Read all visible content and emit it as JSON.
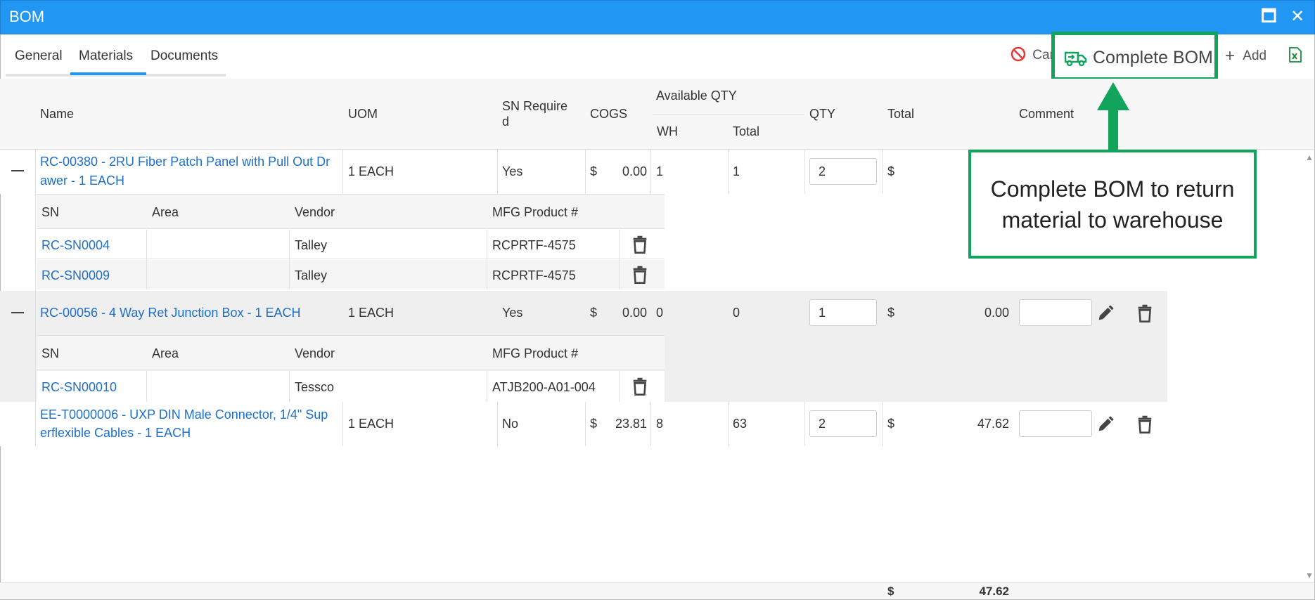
{
  "window": {
    "title": "BOM",
    "maximize_glyph": "🗖",
    "close_glyph": "✕"
  },
  "tabs": [
    {
      "label": "General"
    },
    {
      "label": "Materials"
    },
    {
      "label": "Documents"
    }
  ],
  "toolbar": {
    "cancel_label": "Can",
    "complete_label": "Complete BOM",
    "add_label": "Add",
    "add_glyph": "+"
  },
  "columns": {
    "name": "Name",
    "uom": "UOM",
    "sn_required_line1": "SN Require",
    "sn_required_line2": "d",
    "cogs": "COGS",
    "available_qty": "Available QTY",
    "wh": "WH",
    "avail_total": "Total",
    "qty": "QTY",
    "total": "Total",
    "comment": "Comment"
  },
  "sub_columns": {
    "sn": "SN",
    "area": "Area",
    "vendor": "Vendor",
    "mfg": "MFG Product #"
  },
  "rows": [
    {
      "expand_glyph": "—",
      "name_line1": "RC-00380 - 2RU Fiber Patch Panel with Pull Out Dr",
      "name_line2": "awer - 1 EACH",
      "uom": "1 EACH",
      "sn_required": "Yes",
      "cogs_symbol": "$",
      "cogs": "0.00",
      "wh": "1",
      "avail_total": "1",
      "qty": "2",
      "total_symbol": "$",
      "total": "",
      "serials": [
        {
          "sn": "RC-SN0004",
          "area": "",
          "vendor": "Talley",
          "mfg": "RCPRTF-4575"
        },
        {
          "sn": "RC-SN0009",
          "area": "",
          "vendor": "Talley",
          "mfg": "RCPRTF-4575"
        }
      ]
    },
    {
      "expand_glyph": "—",
      "name_line1": "RC-00056 - 4 Way Ret Junction Box - 1 EACH",
      "name_line2": "",
      "uom": "1 EACH",
      "sn_required": "Yes",
      "cogs_symbol": "$",
      "cogs": "0.00",
      "wh": "0",
      "avail_total": "0",
      "qty": "1",
      "total_symbol": "$",
      "total": "0.00",
      "serials": [
        {
          "sn": "RC-SN00010",
          "area": "",
          "vendor": "Tessco",
          "mfg": "ATJB200-A01-004"
        }
      ]
    },
    {
      "expand_glyph": "",
      "name_line1": "EE-T0000006 - UXP DIN Male Connector, 1/4\" Sup",
      "name_line2": "erflexible Cables - 1 EACH",
      "uom": "1 EACH",
      "sn_required": "No",
      "cogs_symbol": "$",
      "cogs": "23.81",
      "wh": "8",
      "avail_total": "63",
      "qty": "2",
      "total_symbol": "$",
      "total": "47.62",
      "serials": []
    }
  ],
  "footer": {
    "total_symbol": "$",
    "grand_total": "47.62"
  },
  "callout": {
    "line1": "Complete BOM to return",
    "line2": "material to warehouse"
  },
  "colors": {
    "titlebar": "#2196f3",
    "accent_green": "#12a35d",
    "link": "#1e6fc8",
    "tab_active": "#2196f3"
  }
}
